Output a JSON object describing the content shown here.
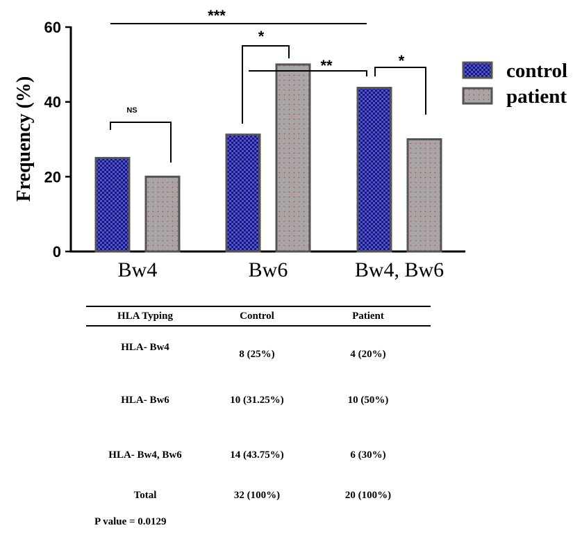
{
  "chart_data": {
    "type": "bar",
    "categories": [
      "Bw4",
      "Bw6",
      "Bw4, Bw6"
    ],
    "series": [
      {
        "name": "control",
        "values": [
          25,
          31.25,
          43.75
        ],
        "color": "#3a3ac8",
        "pattern": "checker"
      },
      {
        "name": "patient",
        "values": [
          20,
          50,
          30
        ],
        "color": "#a6a6a6",
        "pattern": "red-dots"
      }
    ],
    "ylabel": "Frequency (%)",
    "xlabel": "",
    "ylim": [
      0,
      60
    ],
    "yticks": [
      0,
      20,
      40,
      60
    ],
    "grid": false,
    "legend_position": "right",
    "annotations": [
      {
        "label": "***",
        "between": "control Bw4 – control Bw4, Bw6"
      },
      {
        "label": "*",
        "between": "control Bw6 – patient Bw6"
      },
      {
        "label": "**",
        "between": "patient Bw6 – control Bw4, Bw6"
      },
      {
        "label": "*",
        "between": "control Bw4, Bw6 – patient Bw4, Bw6"
      },
      {
        "label": "NS",
        "between": "control Bw4 – patient Bw4"
      }
    ]
  },
  "table": {
    "headers": [
      "HLA Typing",
      "Control",
      "Patient"
    ],
    "rows": [
      [
        "HLA- Bw4",
        "8 (25%)",
        "4 (20%)"
      ],
      [
        "HLA- Bw6",
        "10 (31.25%)",
        "10 (50%)"
      ],
      [
        "HLA- Bw4, Bw6",
        "14 (43.75%)",
        "6 (30%)"
      ],
      [
        "Total",
        "32 (100%)",
        "20 (100%)"
      ]
    ],
    "p_value": "P value = 0.0129"
  }
}
